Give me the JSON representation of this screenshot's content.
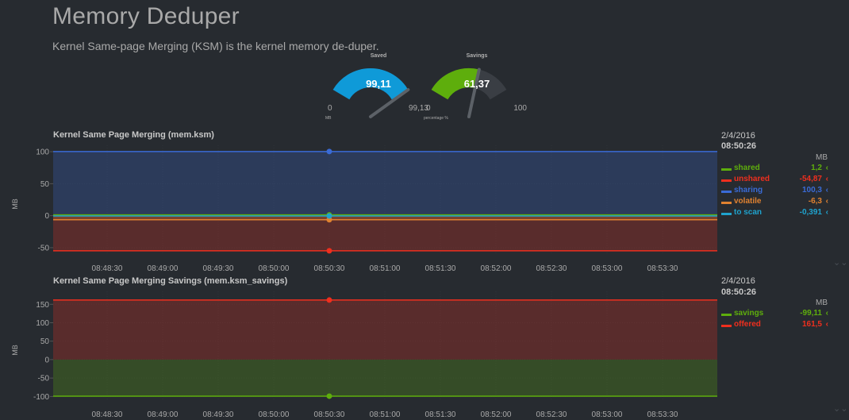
{
  "page": {
    "title": "Memory Deduper",
    "subtitle": "Kernel Same-page Merging (KSM) is the kernel memory de-duper."
  },
  "gauges": [
    {
      "title": "Saved",
      "value": "99,11",
      "min": "0",
      "max": "99,13",
      "units": "MB",
      "fraction": 0.9998,
      "color": "#0f9ad8"
    },
    {
      "title": "Savings",
      "value": "61,37",
      "min": "0",
      "max": "100",
      "units": "percentage %",
      "fraction": 0.6137,
      "color": "#5eae0c"
    }
  ],
  "chart_data": [
    {
      "type": "area",
      "title": "Kernel Same Page Merging (mem.ksm)",
      "ylabel": "MB",
      "ylim": [
        -60,
        110
      ],
      "yticks": [
        "100",
        "50",
        "0",
        "-50"
      ],
      "ytick_values": [
        100,
        50,
        0,
        -50
      ],
      "x": [
        "08:48:30",
        "08:49:00",
        "08:49:30",
        "08:50:00",
        "08:50:30",
        "08:51:00",
        "08:51:30",
        "08:52:00",
        "08:52:30",
        "08:53:00",
        "08:53:30"
      ],
      "highlight_x": "08:50:30",
      "series": [
        {
          "name": "sharing",
          "value": 100.3,
          "color": "#3a6bd6"
        },
        {
          "name": "shared",
          "value": 1.2,
          "color": "#5eae0c"
        },
        {
          "name": "unshared",
          "value": -54.87,
          "color": "#ef2f1e"
        },
        {
          "name": "volatile",
          "value": -6.3,
          "color": "#e08230"
        },
        {
          "name": "to scan",
          "value": -0.391,
          "color": "#1fa3ce"
        }
      ],
      "legend": {
        "date": "2/4/2016",
        "time": "08:50:26",
        "units": "MB",
        "rows": [
          {
            "name": "shared",
            "value": "1,2",
            "color": "#5eae0c"
          },
          {
            "name": "unshared",
            "value": "-54,87",
            "color": "#ef2f1e"
          },
          {
            "name": "sharing",
            "value": "100,3",
            "color": "#3a6bd6"
          },
          {
            "name": "volatile",
            "value": "-6,3",
            "color": "#e08230"
          },
          {
            "name": "to scan",
            "value": "-0,391",
            "color": "#1fa3ce"
          }
        ]
      }
    },
    {
      "type": "area",
      "title": "Kernel Same Page Merging Savings (mem.ksm_savings)",
      "ylabel": "MB",
      "ylim": [
        -110,
        185
      ],
      "yticks": [
        "150",
        "100",
        "50",
        "0",
        "-50",
        "-100"
      ],
      "ytick_values": [
        150,
        100,
        50,
        0,
        -50,
        -100
      ],
      "x": [
        "08:48:30",
        "08:49:00",
        "08:49:30",
        "08:50:00",
        "08:50:30",
        "08:51:00",
        "08:51:30",
        "08:52:00",
        "08:52:30",
        "08:53:00",
        "08:53:30"
      ],
      "highlight_x": "08:50:30",
      "series": [
        {
          "name": "savings",
          "value": -99.11,
          "color": "#5eae0c"
        },
        {
          "name": "offered",
          "value": 161.5,
          "color": "#ef2f1e"
        }
      ],
      "legend": {
        "date": "2/4/2016",
        "time": "08:50:26",
        "units": "MB",
        "rows": [
          {
            "name": "savings",
            "value": "-99,11",
            "color": "#5eae0c"
          },
          {
            "name": "offered",
            "value": "161,5",
            "color": "#ef2f1e"
          }
        ]
      }
    }
  ],
  "caret": "‹",
  "resize_icon": "⌄⌄"
}
